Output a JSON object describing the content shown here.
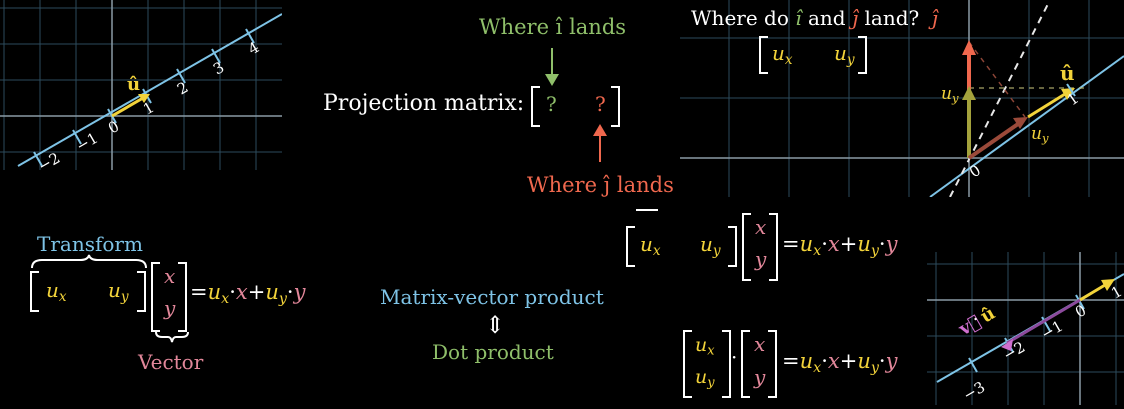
{
  "colors": {
    "green": "#8fbf6a",
    "red": "#f0684e",
    "yellow": "#f2d33a",
    "pink": "#e2879a",
    "blue": "#7ec3e6",
    "purple": "#cf6fcf",
    "grid": "#2c4a5c",
    "axis": "#8a9aa6"
  },
  "top_left_panel": {
    "vector_label": "û",
    "ticks": [
      "−2",
      "−1",
      "0",
      "1",
      "2",
      "3",
      "4"
    ]
  },
  "projection": {
    "where_i_lands": "Where î lands",
    "label": "Projection matrix:",
    "entry1": "?",
    "entry2": "?",
    "where_j_lands": "Where ĵ lands"
  },
  "top_right_panel": {
    "question_prefix": "Where do",
    "question_i": "î",
    "question_and": "and",
    "question_j": "ĵ",
    "question_suffix": "land?",
    "j_label": "ĵ",
    "matrix": [
      "u",
      "x",
      "u",
      "y"
    ],
    "u_hat": "û",
    "uy_label": [
      "u",
      "y"
    ],
    "ux_label": [
      "u",
      "y"
    ],
    "tick_1": "1",
    "origin": "0"
  },
  "transform_equation": {
    "transform_label": "Transform",
    "vector_label": "Vector",
    "row": [
      "u",
      "x",
      "u",
      "y"
    ],
    "col": [
      "x",
      "y"
    ],
    "eq": "=",
    "rhs": [
      "u",
      "x",
      "·",
      "x",
      "+",
      "u",
      "y",
      "·",
      "y"
    ]
  },
  "mid_bottom": {
    "matrix_vector_product": "Matrix-vector product",
    "arrow": "⇕",
    "dot_product": "Dot product"
  },
  "right_equations": {
    "eq1_row": [
      "u",
      "x",
      "u",
      "y"
    ],
    "eq1_col": [
      "x",
      "y"
    ],
    "eq2_col_u": [
      "u",
      "x",
      "u",
      "y"
    ],
    "dot": "·",
    "eq2_col": [
      "x",
      "y"
    ],
    "eq": "=",
    "rhs": [
      "u",
      "x",
      "·",
      "x",
      "+",
      "u",
      "y",
      "·",
      "y"
    ]
  },
  "bottom_right_panel": {
    "v_label": "v⃗",
    "dot": "·",
    "u_label": "û",
    "ticks": [
      "−3",
      "−2",
      "−1",
      "0",
      "1"
    ]
  }
}
